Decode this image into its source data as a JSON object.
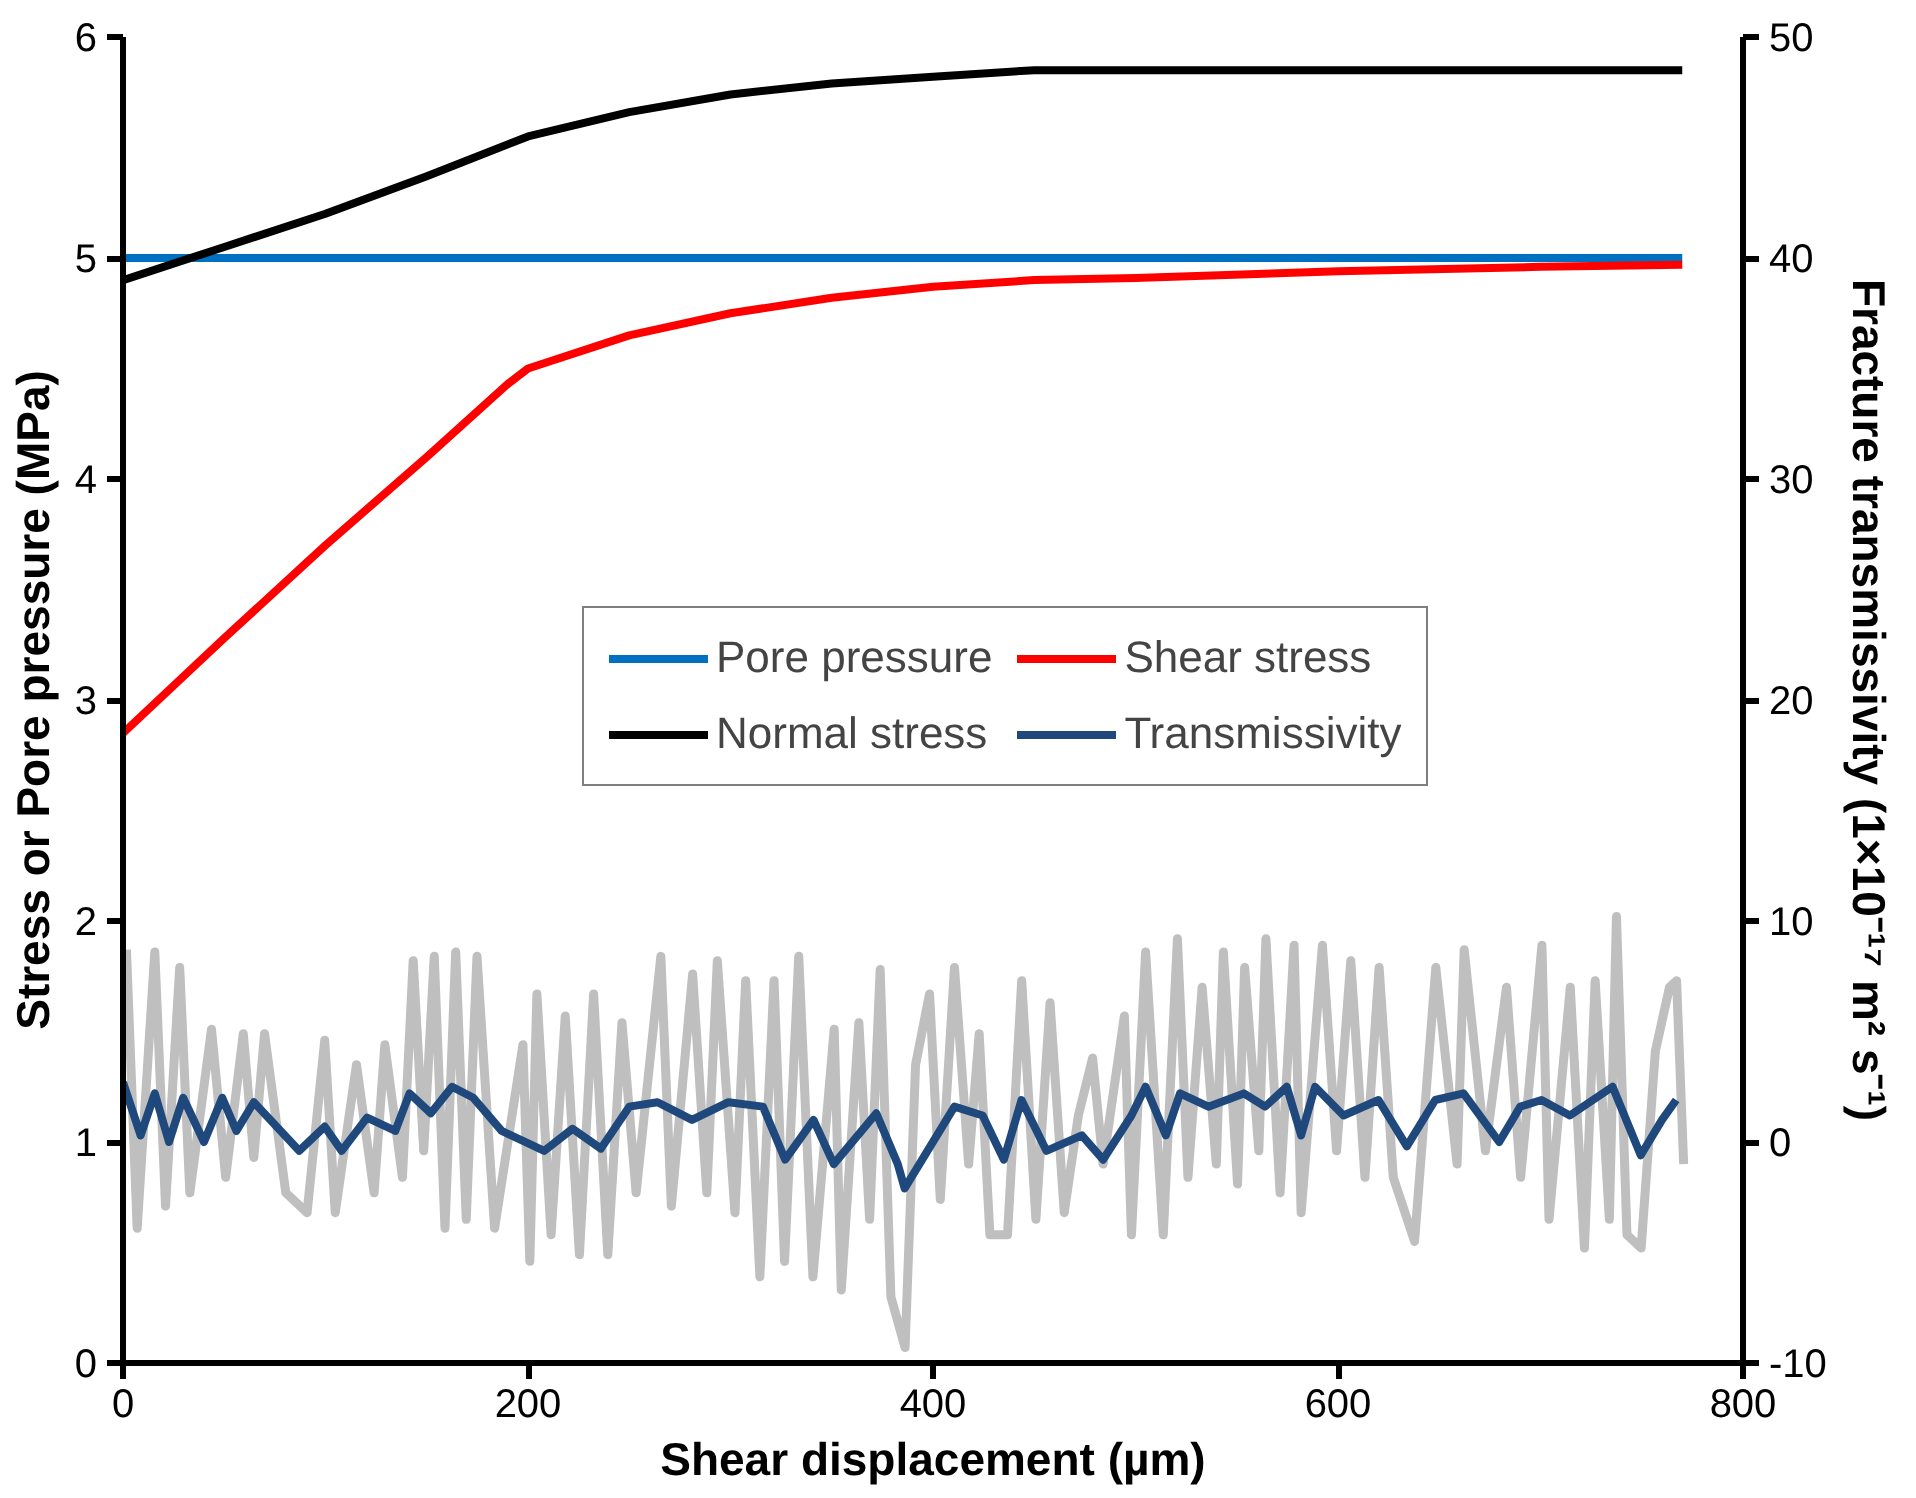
{
  "chart_data": {
    "type": "line",
    "xlabel": "Shear displacement (µm)",
    "ylabel": "Stress or Pore pressure (MPa)",
    "y2label": "Fracture transmissivity (1×10⁻¹⁷ m² s⁻¹)",
    "xlim": [
      0,
      800
    ],
    "xticks": [
      0,
      200,
      400,
      600,
      800
    ],
    "ylim": [
      0,
      6
    ],
    "yticks": [
      0,
      1,
      2,
      3,
      4,
      5,
      6
    ],
    "y2lim": [
      -10,
      50
    ],
    "y2ticks": [
      -10,
      0,
      10,
      20,
      30,
      40,
      50
    ],
    "grid": false,
    "legend": "right",
    "line_style": "solid",
    "marker": "none",
    "series": [
      {
        "axis": "y2",
        "color": "#bfbfbf",
        "x": [
          1.7,
          7,
          15.7,
          21,
          28,
          33,
          43.7,
          50.7,
          59.4,
          64.6,
          69.9,
          80.4,
          90.9,
          99.6,
          104.8,
          115.3,
          124,
          129.3,
          138,
          143.3,
          148.5,
          153.7,
          159,
          164.3,
          169.5,
          174.8,
          183.5,
          197.5,
          200.9,
          204.4,
          211.4,
          218.4,
          225.4,
          232.4,
          239.4,
          246.4,
          253.4,
          265.6,
          270.8,
          281.3,
          288.3,
          293.5,
          302.2,
          307.5,
          314.5,
          321.5,
          326.7,
          333.7,
          340.7,
          351.2,
          354.7,
          363.4,
          368.7,
          373.9,
          379.2,
          386.2,
          391.4,
          398.3,
          403.6,
          410.6,
          417.6,
          422.8,
          428.1,
          436.8,
          443.8,
          450.8,
          457.8,
          464.8,
          471.8,
          478.8,
          484,
          494.5,
          498,
          505,
          513.7,
          520.7,
          525.9,
          532.9,
          539.9,
          543.4,
          550.4,
          553.9,
          560.9,
          564.4,
          571.4,
          578.3,
          581.8,
          592.3,
          599.3,
          606.3,
          613.3,
          620.3,
          627.3,
          637.8,
          648.3,
          658.8,
          662.3,
          672.8,
          683.2,
          690.2,
          700.7,
          704.2,
          714.7,
          721.7,
          727,
          734,
          737.5,
          742.7,
          749.7,
          756.7,
          763.7,
          767.2,
          770.7
        ],
        "values": [
          8.7,
          -3.9,
          8.6,
          -2.9,
          7.9,
          -2.3,
          5.1,
          -1.6,
          4.9,
          -0.7,
          4.9,
          -2.3,
          -3.2,
          4.6,
          -3.2,
          3.5,
          -2.3,
          4.4,
          -1.6,
          8.2,
          -0.4,
          8.4,
          -3.9,
          8.6,
          -3.5,
          8.4,
          -3.9,
          4.4,
          -5.4,
          6.7,
          -4.2,
          5.7,
          -5.1,
          6.7,
          -5.1,
          5.4,
          -2.3,
          8.4,
          -2.9,
          7.6,
          -2.3,
          8.2,
          -3.2,
          7.3,
          -6.1,
          7.3,
          -5.4,
          8.4,
          -6.1,
          5.1,
          -6.7,
          5.4,
          -3.5,
          7.8,
          -7.0,
          -9.3,
          3.5,
          6.7,
          -2.6,
          7.9,
          -1.0,
          4.9,
          -4.2,
          -4.2,
          7.3,
          -3.5,
          6.3,
          -3.2,
          1.2,
          3.8,
          -1.0,
          5.7,
          -4.2,
          8.6,
          -4.2,
          9.2,
          -1.6,
          7.0,
          -1.0,
          8.6,
          -1.9,
          7.9,
          -0.4,
          9.2,
          -2.3,
          8.9,
          -3.2,
          8.9,
          -0.4,
          8.2,
          -1.6,
          7.9,
          -1.6,
          -4.5,
          7.9,
          -1.0,
          8.7,
          -0.4,
          7.0,
          -1.6,
          8.9,
          -3.5,
          7.0,
          -4.8,
          7.3,
          -3.5,
          10.2,
          -4.2,
          -4.8,
          4.1,
          7.0,
          7.3,
          -1.0
        ]
      },
      {
        "name": "Pore pressure",
        "color": "#0070c0",
        "x": [
          0,
          100,
          200,
          300,
          400,
          500,
          600,
          700,
          770
        ],
        "values": [
          5.0,
          5.0,
          5.0,
          5.0,
          5.0,
          5.0,
          5.0,
          5.0,
          5.0
        ]
      },
      {
        "name": "Shear stress",
        "color": "#ff0000",
        "x": [
          0,
          50,
          100,
          150,
          190,
          200,
          250,
          300,
          350,
          400,
          450,
          500,
          600,
          700,
          770
        ],
        "values": [
          2.85,
          3.28,
          3.7,
          4.1,
          4.43,
          4.5,
          4.65,
          4.75,
          4.82,
          4.87,
          4.9,
          4.91,
          4.94,
          4.96,
          4.97
        ]
      },
      {
        "name": "Normal stress",
        "color": "#000000",
        "x": [
          0,
          50,
          100,
          150,
          200,
          250,
          300,
          350,
          400,
          450,
          500,
          600,
          700,
          770
        ],
        "values": [
          4.9,
          5.05,
          5.2,
          5.37,
          5.55,
          5.66,
          5.74,
          5.79,
          5.82,
          5.85,
          5.85,
          5.85,
          5.85,
          5.85
        ]
      },
      {
        "name": "Transmissivity",
        "color": "#1f497d",
        "axis": "y2",
        "x": [
          0,
          8.7,
          15.7,
          22.7,
          29.7,
          40,
          49,
          56,
          64.6,
          87,
          99.6,
          108,
          120.5,
          134.5,
          141.5,
          152,
          162.5,
          173,
          187,
          208,
          222,
          236,
          250,
          264,
          281,
          299,
          316,
          327,
          341,
          351,
          372,
          382.6,
          386,
          410.6,
          424.5,
          435,
          443.7,
          456,
          473.5,
          484,
          498,
          505,
          515,
          522,
          536,
          553.5,
          564,
          574.7,
          581.8,
          588.7,
          602.7,
          620,
          634,
          648,
          662,
          679.6,
          690,
          700.5,
          714.5,
          735.6,
          749.5,
          760,
          767
        ],
        "values": [
          2.7,
          0.3,
          2.2,
          0,
          2.0,
          0,
          2.0,
          0.5,
          1.8,
          -0.4,
          0.7,
          -0.4,
          1.1,
          0.5,
          2.2,
          1.3,
          2.5,
          2.0,
          0.5,
          -0.4,
          0.6,
          -0.3,
          1.6,
          1.8,
          1.0,
          1.8,
          1.6,
          -0.8,
          1.0,
          -1.0,
          1.3,
          -1.0,
          -2.1,
          1.6,
          1.2,
          -0.8,
          1.9,
          -0.4,
          0.3,
          -0.8,
          1.2,
          2.5,
          0.3,
          2.2,
          1.6,
          2.2,
          1.6,
          2.5,
          0.3,
          2.5,
          1.2,
          1.9,
          -0.2,
          1.9,
          2.2,
          0,
          1.6,
          1.9,
          1.2,
          2.5,
          -0.6,
          1.0,
          1.9
        ]
      }
    ]
  }
}
